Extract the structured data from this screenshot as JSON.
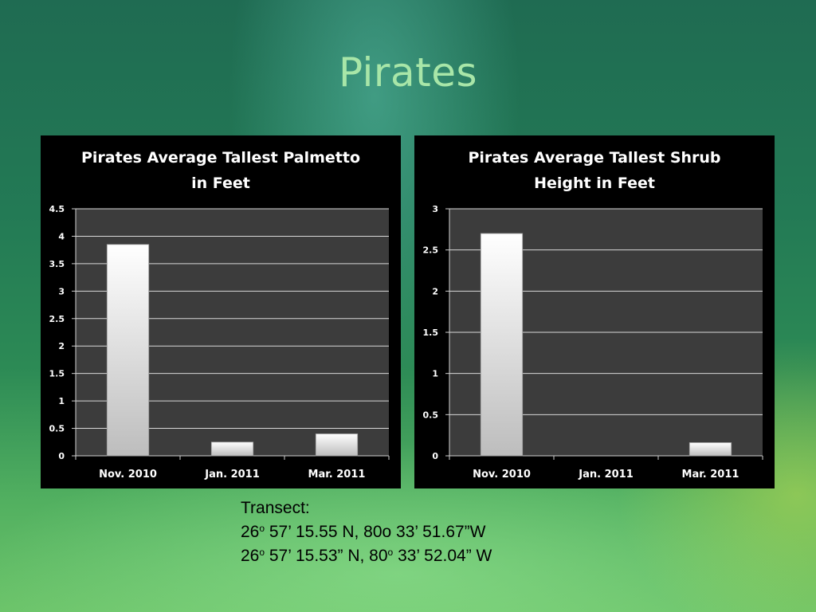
{
  "slide": {
    "title": "Pirates"
  },
  "chart_data": [
    {
      "type": "bar",
      "title_lines": [
        "Pirates Average Tallest Palmetto",
        "in Feet"
      ],
      "categories": [
        "Nov. 2010",
        "Jan. 2011",
        "Mar. 2011"
      ],
      "values": [
        3.85,
        0.25,
        0.4
      ],
      "ylim": [
        0,
        4.5
      ],
      "yticks": [
        "0",
        "0.5",
        "1",
        "1.5",
        "2",
        "2.5",
        "3",
        "3.5",
        "4",
        "4.5"
      ],
      "grid": true,
      "legend": "none"
    },
    {
      "type": "bar",
      "title_lines": [
        "Pirates Average Tallest Shrub",
        "Height in Feet"
      ],
      "categories": [
        "Nov. 2010",
        "Jan. 2011",
        "Mar. 2011"
      ],
      "values": [
        2.7,
        0,
        0.16
      ],
      "ylim": [
        0,
        3
      ],
      "yticks": [
        "0",
        "0.5",
        "1",
        "1.5",
        "2",
        "2.5",
        "3"
      ],
      "grid": true,
      "legend": "none"
    }
  ],
  "caption": {
    "label": "Transect:",
    "line1": {
      "deg1": "26",
      "sup1": "o",
      "rest": " 57’ 15.55 N, 80o 33’ 51.67”W"
    },
    "line2": {
      "deg1": "26",
      "sup1": "o",
      "mid": " 57’ 15.53” N, 80",
      "sup2": "o",
      "rest": " 33’ 52.04” W"
    }
  }
}
